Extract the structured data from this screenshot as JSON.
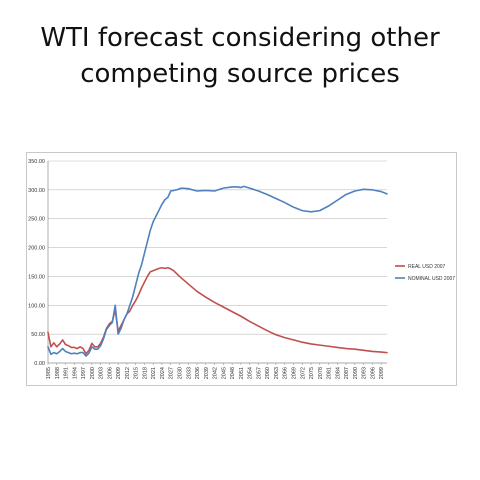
{
  "slide": {
    "title_line1": "WTI forecast considering other",
    "title_line2": "competing source prices"
  },
  "chart_data": {
    "type": "line",
    "title": "",
    "xlabel": "",
    "ylabel": "",
    "ylim": [
      0,
      350
    ],
    "xlim": [
      1985,
      2101
    ],
    "grid": "horizontal",
    "legend": "right",
    "y_tick_labels": [
      "0.00",
      "50.00",
      "100.00",
      "150.00",
      "200.00",
      "250.00",
      "300.00",
      "350.00"
    ],
    "x_tick_labels": [
      "1985",
      "1988",
      "1991",
      "1994",
      "1997",
      "2000",
      "2003",
      "2006",
      "2009",
      "2012",
      "2015",
      "2018",
      "2021",
      "2024",
      "2027",
      "2030",
      "2033",
      "2036",
      "2039",
      "2042",
      "2045",
      "2048",
      "2051",
      "2054",
      "2057",
      "2060",
      "2063",
      "2066",
      "2069",
      "2072",
      "2075",
      "2078",
      "2081",
      "2084",
      "2087",
      "2090",
      "2093",
      "2096",
      "2099"
    ],
    "series": [
      {
        "name": "REAL USD 2007",
        "color": "#c0504d",
        "x": [
          1985,
          1986,
          1987,
          1988,
          1989,
          1990,
          1991,
          1992,
          1993,
          1994,
          1995,
          1996,
          1997,
          1998,
          1999,
          2000,
          2001,
          2002,
          2003,
          2004,
          2005,
          2006,
          2007,
          2008,
          2009,
          2010,
          2011,
          2012,
          2013,
          2014,
          2015,
          2016,
          2017,
          2018,
          2019,
          2020,
          2021,
          2022,
          2023,
          2024,
          2025,
          2026,
          2027,
          2028,
          2030,
          2033,
          2036,
          2039,
          2042,
          2045,
          2048,
          2051,
          2054,
          2057,
          2060,
          2063,
          2066,
          2069,
          2072,
          2075,
          2078,
          2081,
          2084,
          2087,
          2090,
          2093,
          2096,
          2099,
          2101
        ],
        "values": [
          53,
          28,
          35,
          28,
          33,
          40,
          32,
          30,
          27,
          27,
          25,
          28,
          25,
          16,
          22,
          34,
          28,
          28,
          34,
          45,
          60,
          68,
          72,
          92,
          55,
          65,
          75,
          85,
          90,
          100,
          108,
          118,
          130,
          140,
          150,
          158,
          160,
          162,
          164,
          165,
          164,
          165,
          163,
          160,
          150,
          137,
          124,
          114,
          105,
          97,
          89,
          81,
          72,
          64,
          56,
          49,
          44,
          40,
          36,
          33,
          31,
          29,
          27,
          25,
          24,
          22,
          20,
          19,
          18
        ]
      },
      {
        "name": "NOMINAL USD 2007",
        "color": "#4f81bd",
        "x": [
          1985,
          1986,
          1987,
          1988,
          1989,
          1990,
          1991,
          1992,
          1993,
          1994,
          1995,
          1996,
          1997,
          1998,
          1999,
          2000,
          2001,
          2002,
          2003,
          2004,
          2005,
          2006,
          2007,
          2008,
          2009,
          2010,
          2011,
          2012,
          2013,
          2014,
          2015,
          2016,
          2017,
          2018,
          2019,
          2020,
          2021,
          2022,
          2023,
          2024,
          2025,
          2026,
          2027,
          2028,
          2029,
          2030,
          2031,
          2033,
          2036,
          2039,
          2042,
          2045,
          2048,
          2050,
          2051,
          2052,
          2054,
          2057,
          2060,
          2063,
          2066,
          2069,
          2072,
          2075,
          2078,
          2081,
          2084,
          2087,
          2090,
          2093,
          2096,
          2099,
          2101
        ],
        "values": [
          28,
          15,
          18,
          16,
          20,
          25,
          20,
          18,
          16,
          17,
          16,
          18,
          18,
          12,
          17,
          28,
          24,
          24,
          30,
          42,
          58,
          65,
          70,
          100,
          50,
          60,
          75,
          85,
          100,
          115,
          135,
          155,
          170,
          190,
          210,
          230,
          245,
          255,
          265,
          275,
          283,
          287,
          298,
          299,
          300,
          302,
          303,
          302,
          298,
          299,
          298,
          303,
          305,
          305,
          304,
          306,
          303,
          298,
          292,
          285,
          278,
          270,
          264,
          262,
          264,
          272,
          282,
          292,
          298,
          301,
          300,
          297,
          293
        ]
      }
    ]
  }
}
